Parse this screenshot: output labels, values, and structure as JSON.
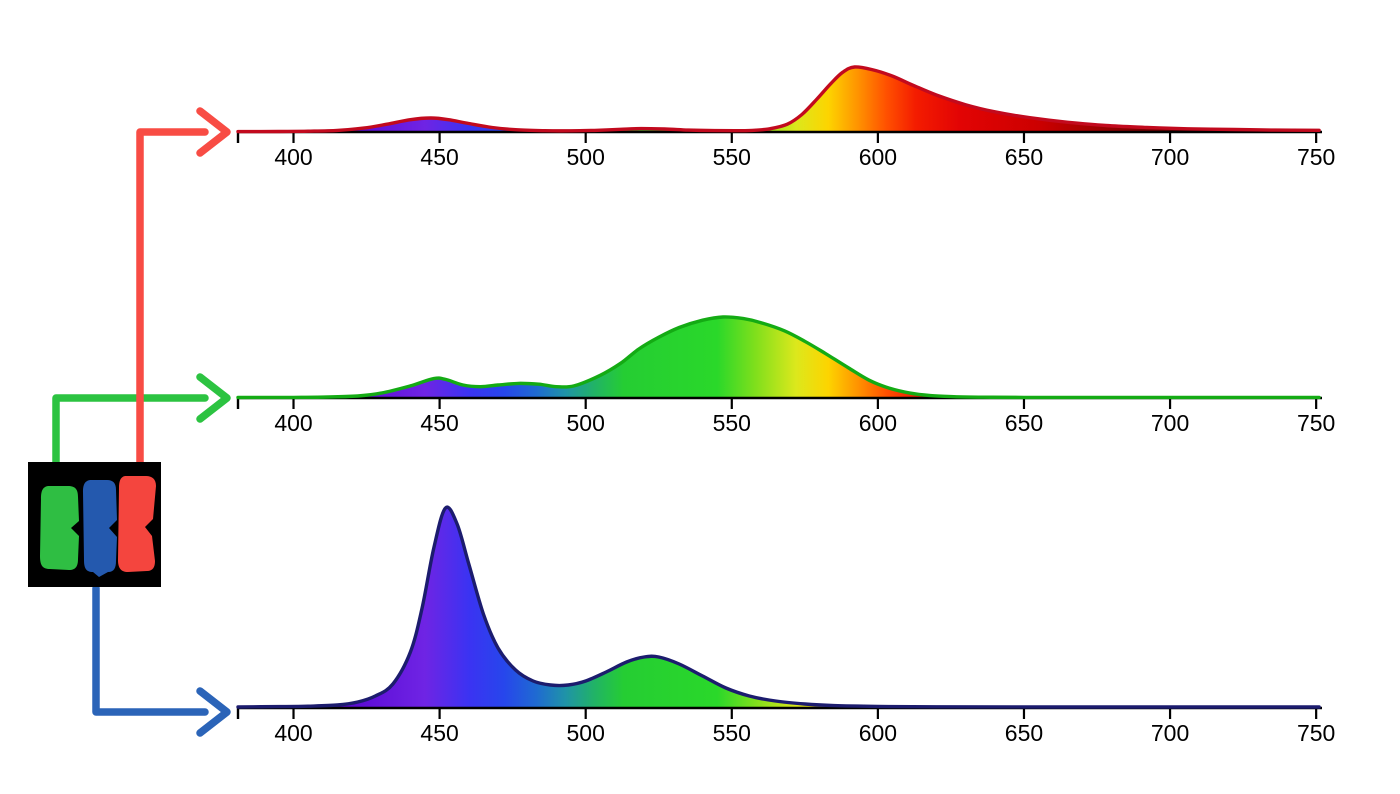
{
  "figure": {
    "background": "#ffffff",
    "description_names": [
      "red-subpixel-spectrum",
      "green-subpixel-spectrum",
      "blue-subpixel-spectrum"
    ]
  },
  "axis": {
    "tick_labels": [
      "400",
      "450",
      "500",
      "550",
      "600",
      "650",
      "700",
      "750"
    ],
    "tick_values": [
      400,
      450,
      500,
      550,
      600,
      650,
      700,
      750
    ],
    "x_min_nm": 381,
    "x_max_nm": 752,
    "line_color": "#000000",
    "label_color": "#000000"
  },
  "spectral_gradient": [
    {
      "nm": 381,
      "color": "#2a0060"
    },
    {
      "nm": 400,
      "color": "#4a00b4"
    },
    {
      "nm": 425,
      "color": "#5f0fd8"
    },
    {
      "nm": 445,
      "color": "#6f24e4"
    },
    {
      "nm": 460,
      "color": "#3b33f2"
    },
    {
      "nm": 472,
      "color": "#2746ec"
    },
    {
      "nm": 483,
      "color": "#1f6ad2"
    },
    {
      "nm": 493,
      "color": "#1f93a8"
    },
    {
      "nm": 503,
      "color": "#21b366"
    },
    {
      "nm": 513,
      "color": "#25cd33"
    },
    {
      "nm": 545,
      "color": "#2ad82a"
    },
    {
      "nm": 558,
      "color": "#7fdf1c"
    },
    {
      "nm": 572,
      "color": "#dce81c"
    },
    {
      "nm": 583,
      "color": "#fdd400"
    },
    {
      "nm": 593,
      "color": "#ff9400"
    },
    {
      "nm": 603,
      "color": "#ff5000"
    },
    {
      "nm": 613,
      "color": "#f41c00"
    },
    {
      "nm": 628,
      "color": "#e20404"
    },
    {
      "nm": 655,
      "color": "#cc0000"
    },
    {
      "nm": 675,
      "color": "#a00000"
    },
    {
      "nm": 695,
      "color": "#700000"
    },
    {
      "nm": 715,
      "color": "#4c0000"
    },
    {
      "nm": 752,
      "color": "#2a0000"
    }
  ],
  "chart_data": [
    {
      "type": "area",
      "name": "red-subpixel-spectrum",
      "title": "",
      "xlabel": "",
      "ylabel": "",
      "x_range_nm": [
        381,
        752
      ],
      "stroke_color": "#c20a1e",
      "fill": "spectral-gradient",
      "peak_nm": 592,
      "secondary_peak_nm": 447,
      "x": [
        381,
        395,
        405,
        415,
        424,
        432,
        440,
        447,
        453,
        460,
        468,
        476,
        486,
        495,
        503,
        512,
        519,
        527,
        535,
        544,
        551,
        557,
        563,
        569,
        574,
        579,
        584,
        588,
        592,
        598,
        605,
        612,
        620,
        630,
        640,
        652,
        665,
        678,
        692,
        706,
        722,
        736,
        751
      ],
      "y": [
        0.006,
        0.008,
        0.012,
        0.025,
        0.06,
        0.12,
        0.19,
        0.215,
        0.19,
        0.13,
        0.07,
        0.035,
        0.02,
        0.018,
        0.025,
        0.042,
        0.052,
        0.046,
        0.03,
        0.022,
        0.02,
        0.025,
        0.05,
        0.12,
        0.27,
        0.5,
        0.75,
        0.92,
        1.0,
        0.96,
        0.86,
        0.72,
        0.57,
        0.42,
        0.31,
        0.22,
        0.15,
        0.1,
        0.07,
        0.05,
        0.038,
        0.03,
        0.026
      ]
    },
    {
      "type": "area",
      "name": "green-subpixel-spectrum",
      "title": "",
      "xlabel": "",
      "ylabel": "",
      "x_range_nm": [
        381,
        752
      ],
      "stroke_color": "#14ab14",
      "fill": "spectral-gradient",
      "peak_nm": 547,
      "secondary_peak_nm": 448,
      "x": [
        381,
        400,
        412,
        422,
        430,
        440,
        448,
        452,
        458,
        464,
        470,
        477,
        484,
        490,
        496,
        505,
        512,
        518,
        525,
        532,
        540,
        547,
        554,
        560,
        568,
        575,
        582,
        590,
        597,
        604,
        611,
        618,
        626,
        636,
        650,
        680,
        710,
        751
      ],
      "y": [
        0.006,
        0.008,
        0.012,
        0.025,
        0.06,
        0.15,
        0.24,
        0.23,
        0.16,
        0.14,
        0.16,
        0.18,
        0.17,
        0.14,
        0.15,
        0.28,
        0.43,
        0.6,
        0.75,
        0.87,
        0.96,
        1.0,
        0.98,
        0.93,
        0.83,
        0.7,
        0.55,
        0.37,
        0.22,
        0.12,
        0.06,
        0.03,
        0.016,
        0.01,
        0.008,
        0.008,
        0.008,
        0.008
      ]
    },
    {
      "type": "area",
      "name": "blue-subpixel-spectrum",
      "title": "",
      "xlabel": "",
      "ylabel": "",
      "x_range_nm": [
        381,
        752
      ],
      "stroke_color": "#1c1c6e",
      "fill": "spectral-gradient",
      "peak_nm": 452,
      "secondary_peak_nm": 523,
      "x": [
        381,
        395,
        405,
        415,
        422,
        428,
        434,
        440,
        444,
        448,
        452,
        456,
        460,
        465,
        470,
        476,
        482,
        488,
        494,
        500,
        507,
        514,
        520,
        525,
        532,
        540,
        548,
        556,
        565,
        575,
        585,
        600,
        620,
        660,
        700,
        751
      ],
      "y": [
        0.005,
        0.007,
        0.009,
        0.015,
        0.03,
        0.06,
        0.12,
        0.28,
        0.5,
        0.8,
        1.0,
        0.92,
        0.72,
        0.47,
        0.3,
        0.19,
        0.135,
        0.115,
        0.115,
        0.135,
        0.18,
        0.23,
        0.255,
        0.255,
        0.22,
        0.16,
        0.1,
        0.06,
        0.035,
        0.02,
        0.012,
        0.008,
        0.006,
        0.005,
        0.005,
        0.005
      ]
    }
  ],
  "arrows": [
    {
      "name": "green-arrow",
      "color": "#2cc341",
      "from": "green-subpixel",
      "to": "green-subpixel-spectrum"
    },
    {
      "name": "red-arrow",
      "color": "#f84c44",
      "from": "red-subpixel",
      "to": "red-subpixel-spectrum"
    },
    {
      "name": "blue-arrow",
      "color": "#2b64b8",
      "from": "blue-subpixel",
      "to": "blue-subpixel-spectrum"
    }
  ],
  "subpixel_image": {
    "name": "rgb-subpixel-photo",
    "background": "#000000",
    "subpixels": [
      {
        "name": "green-subpixel",
        "color": "#2fbe43"
      },
      {
        "name": "blue-subpixel",
        "color": "#2459ae"
      },
      {
        "name": "red-subpixel",
        "color": "#f4453e"
      }
    ]
  }
}
